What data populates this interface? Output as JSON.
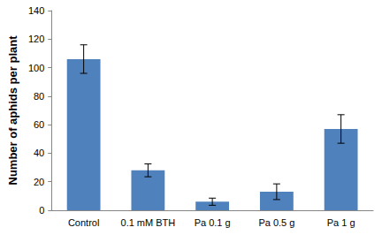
{
  "chart_data": {
    "type": "bar",
    "y_label": "Number of aphids per plant",
    "categories": [
      "Control",
      "0.1 mM BTH",
      "Pa 0.1 g",
      "Pa 0.5 g",
      "Pa 1 g"
    ],
    "values": [
      106,
      28,
      6,
      13,
      57
    ],
    "errors": [
      10,
      4.5,
      2.5,
      5.5,
      10
    ],
    "color": "#4f81bd",
    "ylim": [
      0,
      140
    ],
    "yticks": [
      0,
      20,
      40,
      60,
      80,
      100,
      120,
      140
    ],
    "grid": false
  }
}
